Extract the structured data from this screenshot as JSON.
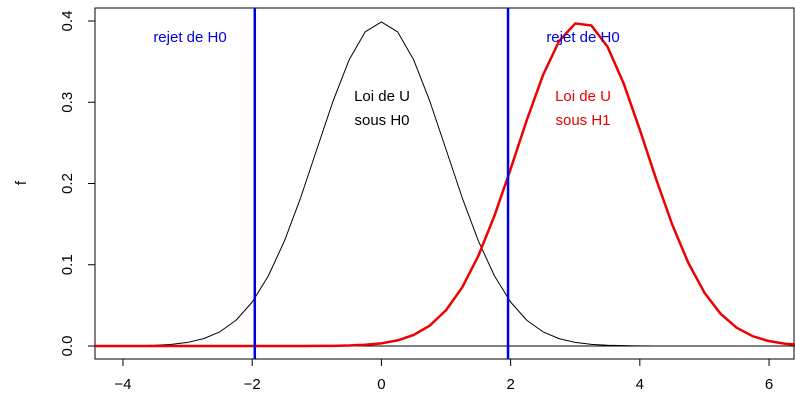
{
  "chart_data": {
    "type": "line",
    "ylabel": "f",
    "x": [
      -4.5,
      -4.25,
      -4,
      -3.75,
      -3.5,
      -3.25,
      -3,
      -2.75,
      -2.5,
      -2.25,
      -2,
      -1.75,
      -1.5,
      -1.25,
      -1,
      -0.75,
      -0.5,
      -0.25,
      0,
      0.25,
      0.5,
      0.75,
      1,
      1.25,
      1.5,
      1.75,
      2,
      2.25,
      2.5,
      2.75,
      3,
      3.25,
      3.5,
      3.75,
      4,
      4.25,
      4.5,
      4.75,
      5,
      5.25,
      5.5,
      5.75,
      6,
      6.25,
      6.5
    ],
    "series": [
      {
        "color": "#000000",
        "width": 1,
        "values": [
          0,
          0,
          0.0001,
          0.0004,
          0.0009,
          0.002,
          0.0044,
          0.0091,
          0.0175,
          0.0317,
          0.054,
          0.0863,
          0.1295,
          0.1826,
          0.242,
          0.3011,
          0.3521,
          0.3867,
          0.3989,
          0.3867,
          0.3521,
          0.3011,
          0.242,
          0.1826,
          0.1295,
          0.0863,
          0.054,
          0.0317,
          0.0175,
          0.0091,
          0.0044,
          0.002,
          0.0009,
          0.0004,
          0.0001,
          0,
          0,
          0,
          0,
          0,
          0,
          0,
          0,
          0,
          0
        ]
      },
      {
        "color": "#ee0000",
        "width": 2.5,
        "values": [
          0,
          0,
          0,
          0,
          0,
          0,
          0,
          0,
          0,
          0,
          0,
          0,
          0,
          0,
          0.0001,
          0.0002,
          0.0006,
          0.0015,
          0.0033,
          0.0069,
          0.0136,
          0.0252,
          0.044,
          0.0721,
          0.1109,
          0.1604,
          0.2179,
          0.278,
          0.3332,
          0.3752,
          0.397,
          0.3945,
          0.3683,
          0.323,
          0.2661,
          0.2059,
          0.1497,
          0.1023,
          0.0656,
          0.0396,
          0.0224,
          0.0119,
          0.006,
          0.0028,
          0.0012
        ]
      }
    ],
    "vlines": [
      -1.96,
      1.96
    ],
    "vline_color": "#0000dd",
    "hline": 0,
    "annotations": [
      {
        "text": "rejet de H0",
        "color": "#0000dd"
      },
      {
        "text": "rejet de H0",
        "color": "#0000dd"
      },
      {
        "text": "Loi de U",
        "color": "#000000"
      },
      {
        "text": "sous H0",
        "color": "#000000"
      },
      {
        "text": "Loi de U",
        "color": "#ee0000"
      },
      {
        "text": "sous H1",
        "color": "#ee0000"
      }
    ],
    "xlim": [
      -4.433,
      6.386
    ],
    "ylim": [
      -0.016,
      0.416
    ],
    "xticks": [
      {
        "value": -4,
        "label": "−4"
      },
      {
        "value": -2,
        "label": "−2"
      },
      {
        "value": 0,
        "label": "0"
      },
      2,
      4,
      6
    ],
    "yticks": [
      {
        "value": 0,
        "label": "0.0"
      },
      0.1,
      0.2,
      0.3,
      0.4
    ]
  }
}
